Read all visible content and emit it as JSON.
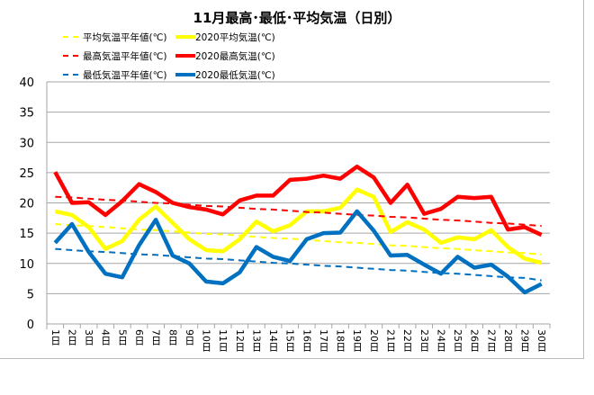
{
  "chart_data": {
    "type": "line",
    "title": "11月最高･最低･平均気温（日別）",
    "xlabel": "",
    "ylabel": "",
    "ylim": [
      0,
      40
    ],
    "yticks": [
      0,
      5,
      10,
      15,
      20,
      25,
      30,
      35,
      40
    ],
    "grid": true,
    "legend_position": "top-left",
    "categories": [
      "1日",
      "2日",
      "3日",
      "4日",
      "5日",
      "6日",
      "7日",
      "8日",
      "9日",
      "10日",
      "11日",
      "12日",
      "13日",
      "14日",
      "15日",
      "16日",
      "17日",
      "18日",
      "19日",
      "20日",
      "21日",
      "22日",
      "23日",
      "24日",
      "25日",
      "26日",
      "27日",
      "28日",
      "29日",
      "30日"
    ],
    "series": [
      {
        "name": "平均気温平年値(℃)",
        "color": "#FFFF00",
        "style": "dashed",
        "values": [
          16.5,
          16.3,
          16.2,
          16.0,
          15.8,
          15.6,
          15.5,
          15.3,
          15.1,
          14.9,
          14.8,
          14.6,
          14.4,
          14.2,
          14.1,
          13.9,
          13.7,
          13.5,
          13.4,
          13.2,
          13.0,
          12.9,
          12.7,
          12.5,
          12.4,
          12.2,
          12.0,
          11.8,
          11.7,
          11.5
        ]
      },
      {
        "name": "2020平均気温(℃)",
        "color": "#FFFF00",
        "style": "solid",
        "values": [
          18.6,
          18.0,
          16.0,
          12.4,
          13.7,
          17.2,
          19.4,
          16.7,
          14.0,
          12.2,
          12.0,
          14.0,
          16.9,
          15.3,
          16.3,
          18.6,
          18.6,
          19.2,
          22.2,
          21.0,
          15.2,
          16.8,
          15.6,
          13.4,
          14.3,
          14.0,
          15.5,
          12.7,
          10.8,
          10.1
        ]
      },
      {
        "name": "最高気温平年値(℃)",
        "color": "#FF0000",
        "style": "dashed",
        "values": [
          21.0,
          20.9,
          20.7,
          20.5,
          20.4,
          20.2,
          20.0,
          19.9,
          19.7,
          19.5,
          19.4,
          19.2,
          19.0,
          18.9,
          18.7,
          18.5,
          18.4,
          18.2,
          18.0,
          17.9,
          17.7,
          17.6,
          17.4,
          17.2,
          17.1,
          16.9,
          16.7,
          16.6,
          16.4,
          16.2
        ]
      },
      {
        "name": "2020最高気温(℃)",
        "color": "#FF0000",
        "style": "solid",
        "values": [
          25.1,
          20.0,
          20.1,
          18.0,
          20.3,
          23.1,
          21.8,
          20.0,
          19.3,
          18.9,
          18.1,
          20.4,
          21.2,
          21.2,
          23.8,
          24.0,
          24.5,
          24.0,
          26.0,
          24.2,
          20.0,
          23.0,
          18.2,
          19.0,
          21.0,
          20.8,
          21.0,
          15.6,
          16.0,
          14.7
        ]
      },
      {
        "name": "最低気温平年値(℃)",
        "color": "#0070C0",
        "style": "dashed",
        "values": [
          12.4,
          12.2,
          12.0,
          11.9,
          11.7,
          11.5,
          11.4,
          11.2,
          11.0,
          10.8,
          10.7,
          10.5,
          10.3,
          10.1,
          10.0,
          9.8,
          9.6,
          9.5,
          9.3,
          9.1,
          8.9,
          8.8,
          8.6,
          8.4,
          8.3,
          8.1,
          7.9,
          7.7,
          7.6,
          7.2
        ]
      },
      {
        "name": "2020最低気温(℃)",
        "color": "#0070C0",
        "style": "solid",
        "values": [
          13.4,
          16.5,
          11.9,
          8.3,
          7.7,
          13.0,
          17.2,
          11.3,
          10.0,
          7.0,
          6.7,
          8.5,
          12.7,
          11.1,
          10.4,
          14.0,
          15.0,
          15.1,
          18.6,
          15.4,
          11.3,
          11.4,
          9.8,
          8.3,
          11.1,
          9.3,
          9.8,
          7.8,
          5.2,
          6.6
        ]
      }
    ]
  }
}
